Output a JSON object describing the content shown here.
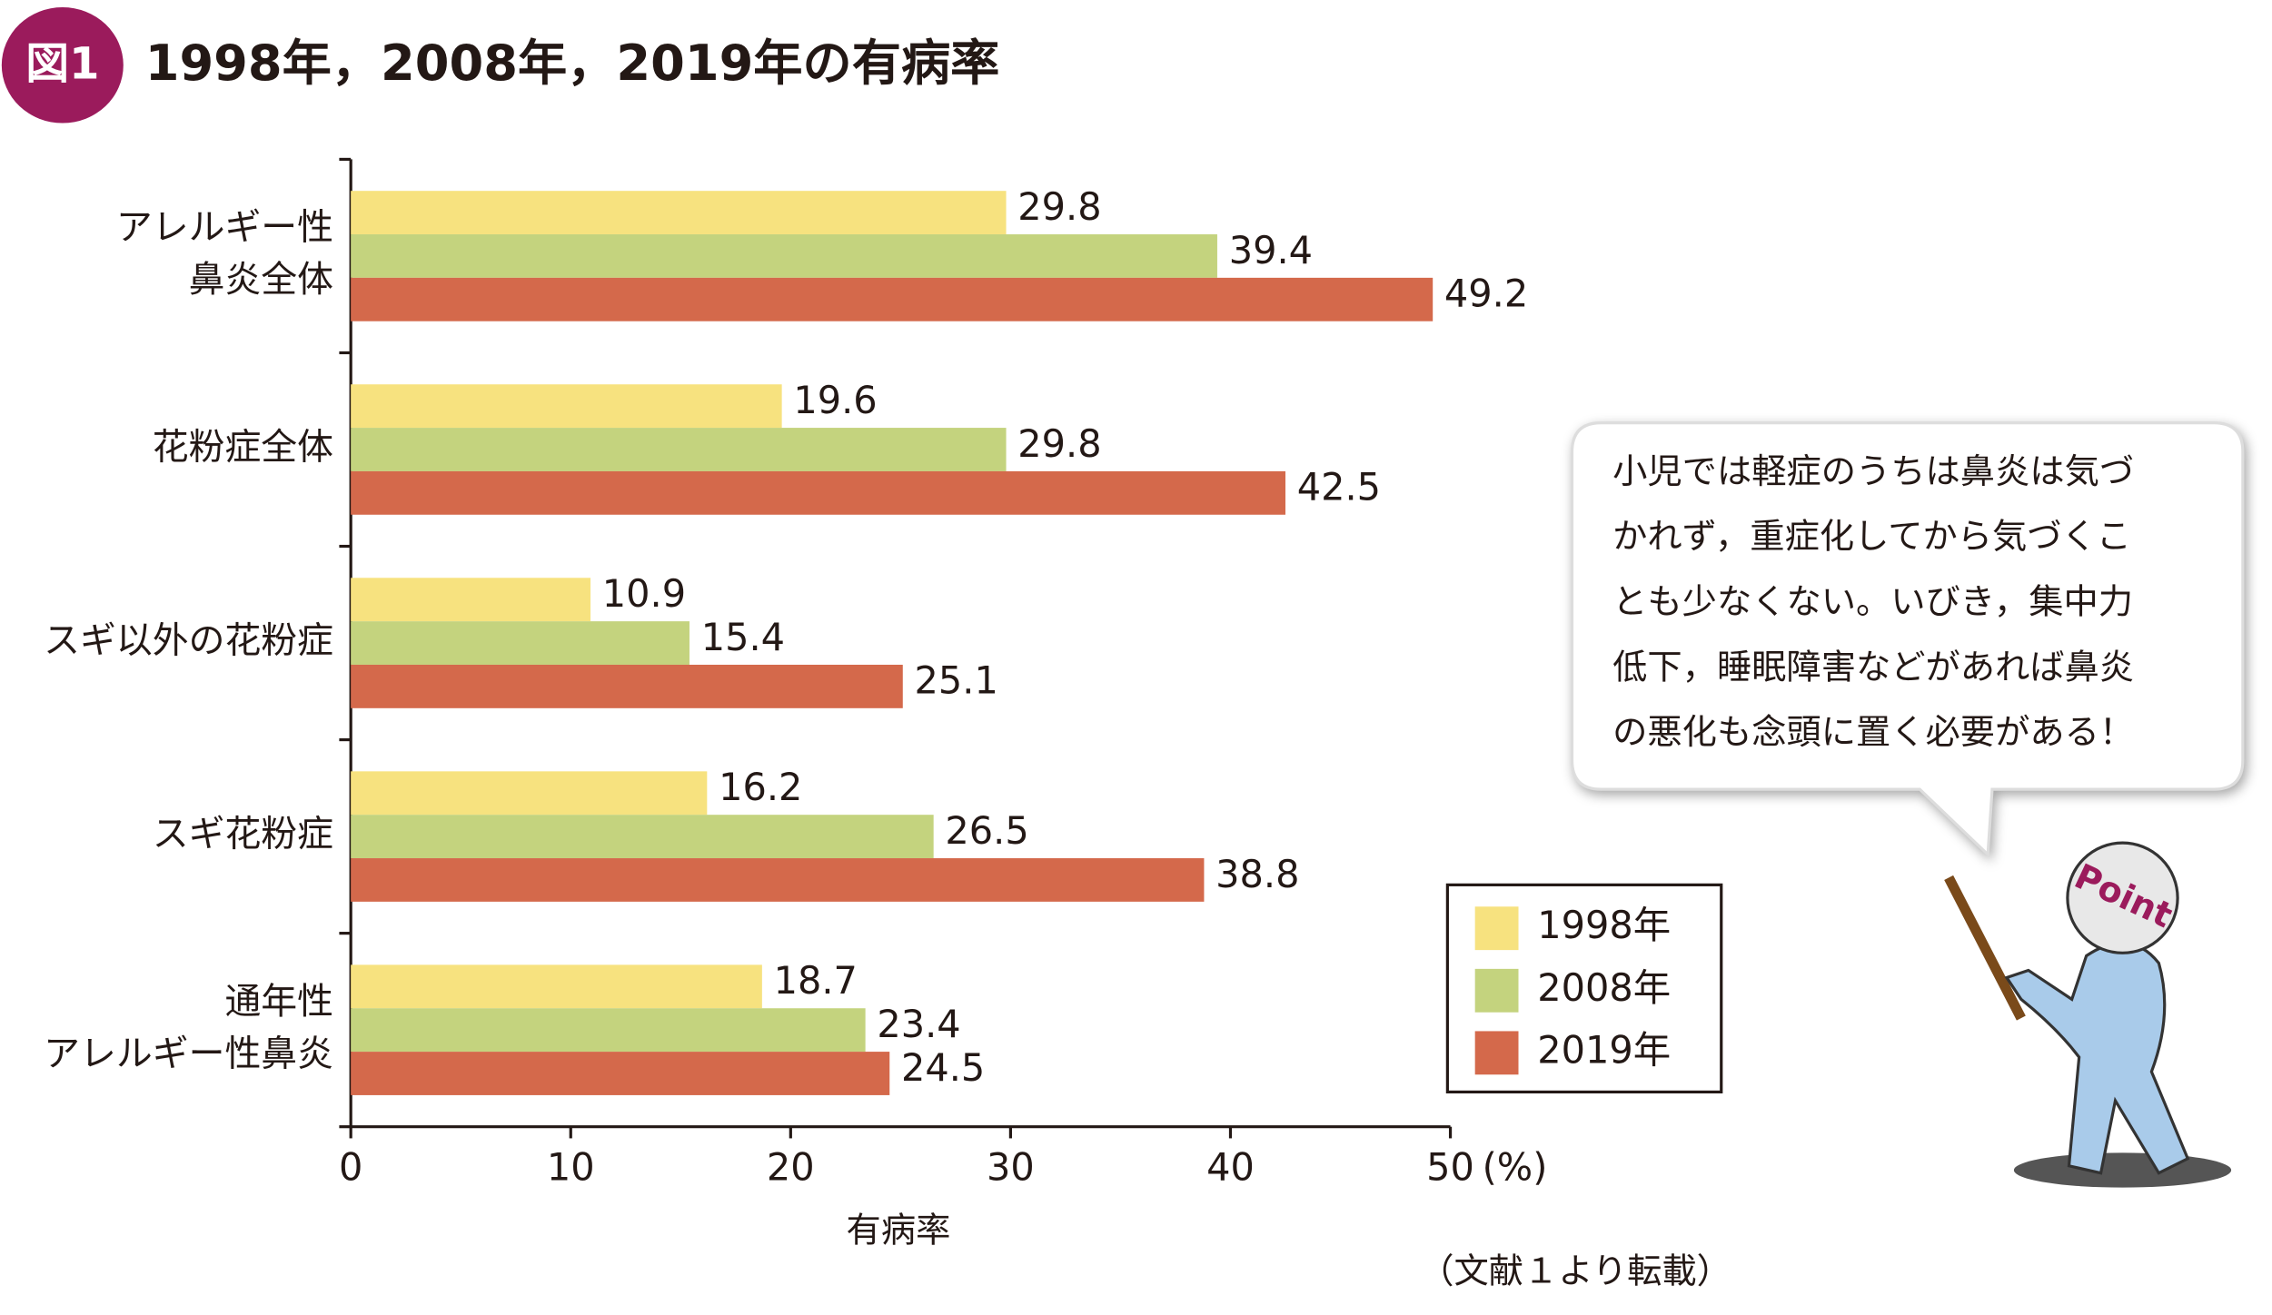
{
  "badge": "図1",
  "chart_data": {
    "type": "hbar",
    "title": "1998年，2008年，2019年の有病率",
    "categories": [
      [
        "アレルギー性",
        "鼻炎全体"
      ],
      [
        "花粉症全体"
      ],
      [
        "スギ以外の花粉症"
      ],
      [
        "スギ花粉症"
      ],
      [
        "通年性",
        "アレルギー性鼻炎"
      ]
    ],
    "series": [
      {
        "name": "1998年",
        "color": "#f7e27f",
        "values": [
          29.8,
          19.6,
          10.9,
          16.2,
          18.7
        ]
      },
      {
        "name": "2008年",
        "color": "#c4d37e",
        "values": [
          39.4,
          29.8,
          15.4,
          26.5,
          23.4
        ]
      },
      {
        "name": "2019年",
        "color": "#d4694b",
        "values": [
          49.2,
          42.5,
          25.1,
          38.8,
          24.5
        ]
      }
    ],
    "xlim": [
      0,
      50
    ],
    "xticks": [
      0,
      10,
      20,
      30,
      40,
      50
    ],
    "x_unit": "(%)",
    "x_label": "有病率",
    "legend": "lower-right"
  },
  "source": "（文献１より転載）",
  "callout": {
    "lines": [
      "小児では軽症のうちは鼻炎は気づ",
      "かれず，重症化してから気づくこ",
      "とも少なくない。いびき，集中力",
      "低下，睡眠障害などがあれば鼻炎",
      "の悪化も念頭に置く必要がある！"
    ],
    "mascot_label": "Point"
  }
}
